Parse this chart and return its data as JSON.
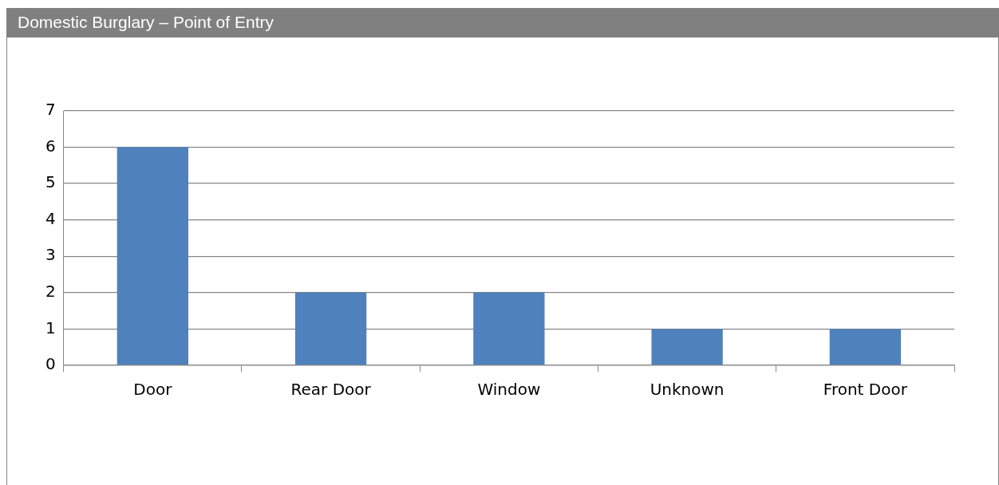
{
  "chart_data": {
    "type": "bar",
    "title": "Domestic Burglary – Point of Entry",
    "categories": [
      "Door",
      "Rear Door",
      "Window",
      "Unknown",
      "Front Door"
    ],
    "values": [
      6,
      2,
      2,
      1,
      1
    ],
    "color": "#4f81bd",
    "ylim": [
      0,
      7
    ],
    "yticks": [
      0,
      1,
      2,
      3,
      4,
      5,
      6,
      7
    ],
    "grid": "y",
    "legend": false
  }
}
